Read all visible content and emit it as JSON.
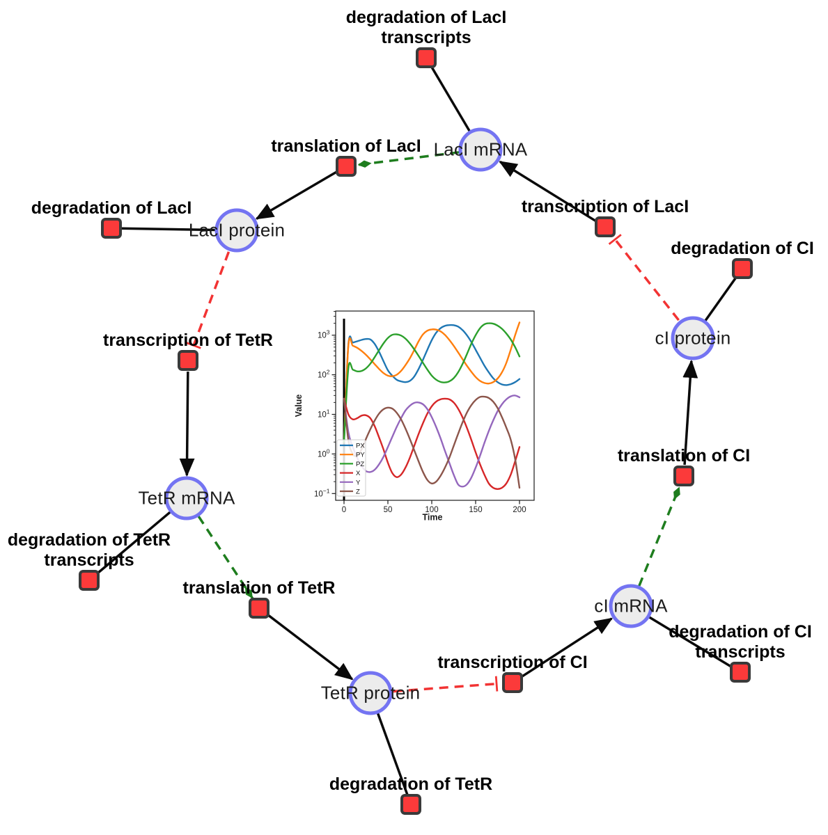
{
  "network": {
    "nodes": [
      {
        "id": "lacI-mRNA",
        "type": "species",
        "label": "LacI mRNA"
      },
      {
        "id": "lacI-protein",
        "type": "species",
        "label": "LacI protein"
      },
      {
        "id": "tetR-mRNA",
        "type": "species",
        "label": "TetR mRNA"
      },
      {
        "id": "tetR-protein",
        "type": "species",
        "label": "TetR protein"
      },
      {
        "id": "cI-mRNA",
        "type": "species",
        "label": "cI mRNA"
      },
      {
        "id": "cI-protein",
        "type": "species",
        "label": "cI protein"
      },
      {
        "id": "degradation-lacI-transcripts",
        "type": "reaction",
        "label": "degradation of LacI transcripts"
      },
      {
        "id": "translation-lacI",
        "type": "reaction",
        "label": "translation of LacI"
      },
      {
        "id": "degradation-lacI",
        "type": "reaction",
        "label": "degradation of LacI"
      },
      {
        "id": "transcription-lacI",
        "type": "reaction",
        "label": "transcription of LacI"
      },
      {
        "id": "degradation-cI",
        "type": "reaction",
        "label": "degradation of CI"
      },
      {
        "id": "transcription-tetR",
        "type": "reaction",
        "label": "transcription of TetR"
      },
      {
        "id": "degradation-tetR-transcripts",
        "type": "reaction",
        "label": "degradation of TetR transcripts"
      },
      {
        "id": "translation-tetR",
        "type": "reaction",
        "label": "translation of TetR"
      },
      {
        "id": "degradation-tetR",
        "type": "reaction",
        "label": "degradation of TetR"
      },
      {
        "id": "transcription-cI",
        "type": "reaction",
        "label": "transcription of CI"
      },
      {
        "id": "degradation-cI-transcripts",
        "type": "reaction",
        "label": "degradation of CI transcripts"
      },
      {
        "id": "translation-cI",
        "type": "reaction",
        "label": "translation of CI"
      }
    ],
    "edges": [
      {
        "from": "lacI-mRNA",
        "to": "degradation-lacI-transcripts",
        "type": "consumption"
      },
      {
        "from": "lacI-mRNA",
        "to": "translation-lacI",
        "type": "modifier"
      },
      {
        "from": "translation-lacI",
        "to": "lacI-protein",
        "type": "production"
      },
      {
        "from": "lacI-protein",
        "to": "degradation-lacI",
        "type": "consumption"
      },
      {
        "from": "lacI-protein",
        "to": "transcription-tetR",
        "type": "inhibition"
      },
      {
        "from": "transcription-tetR",
        "to": "tetR-mRNA",
        "type": "production"
      },
      {
        "from": "tetR-mRNA",
        "to": "degradation-tetR-transcripts",
        "type": "consumption"
      },
      {
        "from": "tetR-mRNA",
        "to": "translation-tetR",
        "type": "modifier"
      },
      {
        "from": "translation-tetR",
        "to": "tetR-protein",
        "type": "production"
      },
      {
        "from": "tetR-protein",
        "to": "degradation-tetR",
        "type": "consumption"
      },
      {
        "from": "tetR-protein",
        "to": "transcription-cI",
        "type": "inhibition"
      },
      {
        "from": "transcription-cI",
        "to": "cI-mRNA",
        "type": "production"
      },
      {
        "from": "cI-mRNA",
        "to": "degradation-cI-transcripts",
        "type": "consumption"
      },
      {
        "from": "cI-mRNA",
        "to": "translation-cI",
        "type": "modifier"
      },
      {
        "from": "translation-cI",
        "to": "cI-protein",
        "type": "production"
      },
      {
        "from": "cI-protein",
        "to": "degradation-cI",
        "type": "consumption"
      },
      {
        "from": "cI-protein",
        "to": "transcription-lacI",
        "type": "inhibition"
      },
      {
        "from": "transcription-lacI",
        "to": "lacI-mRNA",
        "type": "production"
      }
    ],
    "colors": {
      "species_fill": "#ececec",
      "species_border": "#7474f2",
      "reaction_fill": "#fb3a3a",
      "reaction_border": "#3a3a3a",
      "edge": "#0a0a0a",
      "modifier": "#1e7d1e",
      "inhibition": "#f23333"
    }
  },
  "chart_data": {
    "type": "line",
    "title": "",
    "xlabel": "Time",
    "ylabel": "Value",
    "x_scale": "linear",
    "y_scale": "log",
    "xlim": [
      -10,
      210
    ],
    "ylim": [
      0.068,
      3400
    ],
    "x_ticks": [
      0,
      50,
      100,
      150,
      200
    ],
    "y_ticks_exponents": [
      -1,
      0,
      1,
      2,
      3
    ],
    "legend_position": "lower left",
    "grid": false,
    "annotations": [
      {
        "type": "vline",
        "x": 0,
        "color": "#000000"
      }
    ],
    "x": [
      0,
      5,
      10,
      15,
      20,
      25,
      30,
      35,
      40,
      45,
      50,
      55,
      60,
      65,
      70,
      75,
      80,
      85,
      90,
      95,
      100,
      105,
      110,
      115,
      120,
      125,
      130,
      135,
      140,
      145,
      150,
      155,
      160,
      165,
      170,
      175,
      180,
      185,
      190,
      195,
      200
    ],
    "series": [
      {
        "name": "PX",
        "color": "#1f77b4",
        "values": [
          2,
          600,
          650,
          700,
          760,
          800,
          780,
          600,
          380,
          220,
          130,
          95,
          75,
          68,
          65,
          70,
          90,
          140,
          240,
          430,
          750,
          1150,
          1500,
          1720,
          1800,
          1790,
          1650,
          1350,
          1000,
          680,
          430,
          270,
          170,
          115,
          82,
          65,
          57,
          55,
          58,
          65,
          78
        ]
      },
      {
        "name": "PY",
        "color": "#ff7f0e",
        "values": [
          2,
          560,
          540,
          480,
          400,
          320,
          245,
          185,
          140,
          110,
          95,
          92,
          100,
          125,
          175,
          260,
          420,
          700,
          1050,
          1300,
          1400,
          1380,
          1250,
          1020,
          760,
          540,
          370,
          250,
          170,
          120,
          88,
          70,
          62,
          60,
          65,
          80,
          115,
          200,
          430,
          1000,
          2100
        ]
      },
      {
        "name": "PZ",
        "color": "#2ca02c",
        "values": [
          2,
          150,
          135,
          122,
          125,
          145,
          190,
          280,
          420,
          620,
          850,
          1020,
          1050,
          980,
          820,
          620,
          440,
          300,
          200,
          135,
          95,
          75,
          66,
          64,
          68,
          82,
          115,
          185,
          330,
          600,
          1000,
          1500,
          1880,
          2000,
          1950,
          1750,
          1450,
          1100,
          780,
          500,
          290
        ]
      },
      {
        "name": "X",
        "color": "#d62728",
        "values": [
          25,
          10,
          7.5,
          8,
          9.3,
          9.5,
          8,
          5,
          2.6,
          1.3,
          0.6,
          0.33,
          0.26,
          0.3,
          0.45,
          0.8,
          1.6,
          3.2,
          6,
          10.5,
          16,
          21,
          24,
          25,
          24,
          20,
          14,
          8.5,
          4.6,
          2.3,
          1.1,
          0.55,
          0.3,
          0.18,
          0.14,
          0.13,
          0.14,
          0.18,
          0.3,
          0.65,
          1.5
        ]
      },
      {
        "name": "Y",
        "color": "#9467bd",
        "values": [
          25,
          3.5,
          1.5,
          0.8,
          0.5,
          0.37,
          0.35,
          0.4,
          0.55,
          0.85,
          1.5,
          2.7,
          4.8,
          8,
          12.5,
          16.5,
          19.5,
          20,
          18,
          13.5,
          8.5,
          4.8,
          2.5,
          1.2,
          0.6,
          0.3,
          0.17,
          0.15,
          0.17,
          0.25,
          0.45,
          0.9,
          1.9,
          3.8,
          7,
          12,
          18,
          24,
          28.5,
          30,
          27
        ]
      },
      {
        "name": "Z",
        "color": "#8c564b",
        "values": [
          25,
          2.2,
          1.0,
          0.9,
          1.3,
          2.4,
          4.2,
          7,
          10.5,
          13.5,
          14.8,
          14,
          11,
          7.5,
          4.4,
          2.4,
          1.25,
          0.65,
          0.35,
          0.22,
          0.18,
          0.2,
          0.28,
          0.45,
          0.8,
          1.6,
          3.2,
          6.2,
          11,
          17,
          23,
          27.5,
          28,
          26,
          21,
          14.5,
          8.5,
          4.6,
          2.3,
          0.75,
          0.14
        ]
      }
    ]
  }
}
